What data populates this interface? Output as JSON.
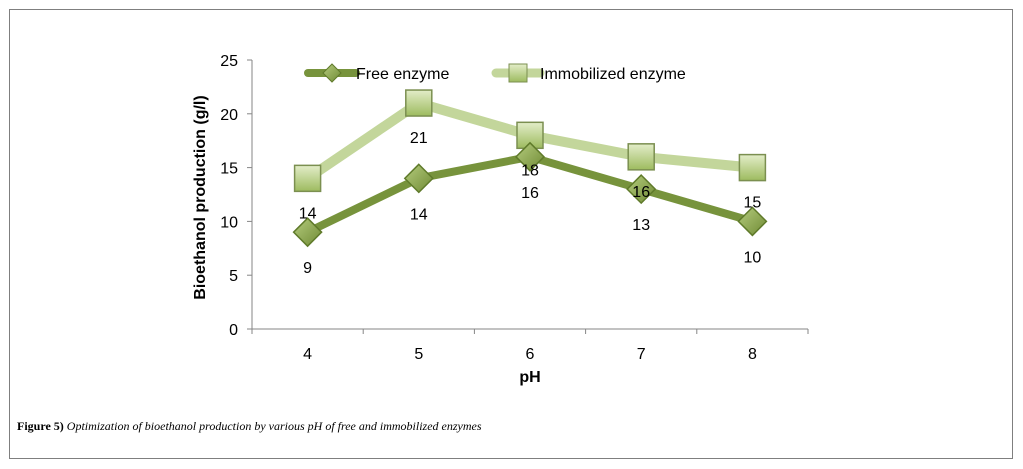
{
  "chart_data": {
    "type": "line",
    "categories": [
      "4",
      "5",
      "6",
      "7",
      "8"
    ],
    "series": [
      {
        "name": "Free enzyme",
        "values": [
          9,
          14,
          16,
          13,
          10
        ],
        "color": "#77933c",
        "marker": "diamond"
      },
      {
        "name": "Immobilized enzyme",
        "values": [
          14,
          21,
          18,
          16,
          15
        ],
        "color": "#c3d69b",
        "marker": "square"
      }
    ],
    "data_labels": {
      "free": [
        "9",
        "14",
        "16",
        "13",
        "10"
      ],
      "immobilized": [
        "14",
        "21",
        "18",
        "16",
        "15"
      ]
    },
    "title": "",
    "xlabel": "pH",
    "ylabel": "Bioethanol production (g/l)",
    "ylim": [
      0,
      25
    ],
    "yticks": [
      "0",
      "5",
      "10",
      "15",
      "20",
      "25"
    ],
    "grid": false,
    "legend_position": "top"
  },
  "caption": {
    "label": "Figure 5)",
    "text": "Optimization of bioethanol production by various pH of free and immobilized enzymes"
  }
}
